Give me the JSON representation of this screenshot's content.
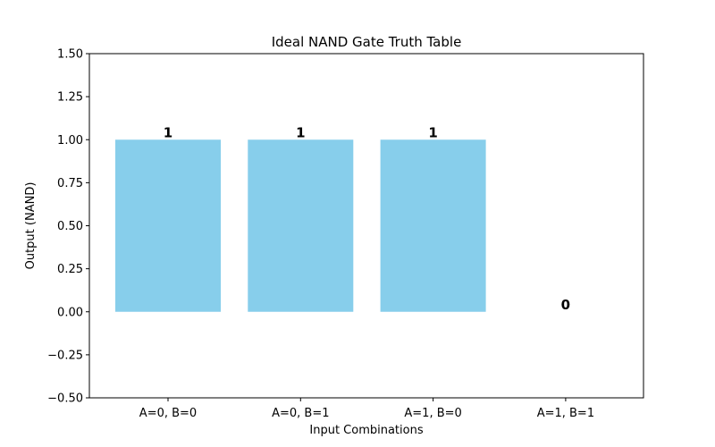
{
  "chart_data": {
    "type": "bar",
    "title": "Ideal NAND Gate Truth Table",
    "xlabel": "Input Combinations",
    "ylabel": "Output (NAND)",
    "categories": [
      "A=0, B=0",
      "A=0, B=1",
      "A=1, B=0",
      "A=1, B=1"
    ],
    "values": [
      1,
      1,
      1,
      0
    ],
    "data_labels": [
      "1",
      "1",
      "1",
      "0"
    ],
    "ylim": [
      -0.5,
      1.5
    ],
    "yticks": [
      -0.5,
      -0.25,
      0.0,
      0.25,
      0.5,
      0.75,
      1.0,
      1.25,
      1.5
    ],
    "ytick_labels": [
      "−0.50",
      "−0.25",
      "0.00",
      "0.25",
      "0.50",
      "0.75",
      "1.00",
      "1.25",
      "1.50"
    ],
    "bar_color": "#87ceeb",
    "grid": false,
    "legend": "none"
  }
}
